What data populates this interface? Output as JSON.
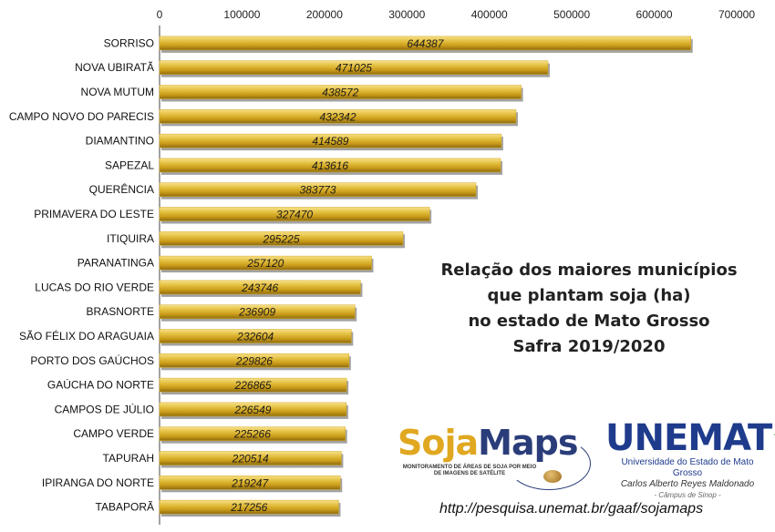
{
  "chart_data": {
    "type": "bar",
    "orientation": "horizontal",
    "title_lines": [
      "Relação dos maiores municípios",
      "que plantam soja (ha)",
      "no estado de Mato Grosso",
      "Safra 2019/2020"
    ],
    "categories": [
      "SORRISO",
      "NOVA UBIRATÃ",
      "NOVA MUTUM",
      "CAMPO NOVO DO PARECIS",
      "DIAMANTINO",
      "SAPEZAL",
      "QUERÊNCIA",
      "PRIMAVERA DO LESTE",
      "ITIQUIRA",
      "PARANATINGA",
      "LUCAS DO RIO VERDE",
      "BRASNORTE",
      "SÃO FÉLIX DO ARAGUAIA",
      "PORTO DOS GAÚCHOS",
      "GAÚCHA DO NORTE",
      "CAMPOS DE JÚLIO",
      "CAMPO VERDE",
      "TAPURAH",
      "IPIRANGA DO NORTE",
      "TABAPORÃ"
    ],
    "values": [
      644387,
      471025,
      438572,
      432342,
      414589,
      413616,
      383773,
      327470,
      295225,
      257120,
      243746,
      236909,
      232604,
      229826,
      226865,
      226549,
      225266,
      220514,
      219247,
      217256
    ],
    "xlim": [
      0,
      700000
    ],
    "x_ticks": [
      0,
      100000,
      200000,
      300000,
      400000,
      500000,
      600000,
      700000
    ],
    "x_axis_position": "top",
    "bar_color": "#d4a820",
    "grid": false,
    "legend": "none"
  },
  "logos": {
    "sojamaps": {
      "name_part1": "Soja",
      "name_part2": "Maps",
      "tagline": "MONITORAMENTO DE ÁREAS DE SOJA POR MEIO DE IMAGENS DE SATÉLITE"
    },
    "unemat": {
      "name": "UNEMAT",
      "line1": "Universidade do Estado de Mato Grosso",
      "line2": "Carlos Alberto Reyes Maldonado",
      "line3": "- Câmpus de Sinop -"
    }
  },
  "source_url": "http://pesquisa.unemat.br/gaaf/sojamaps",
  "colors": {
    "bar": "#d4a820",
    "bar_light": "#f3dc7a",
    "bar_dark": "#9a7410",
    "soja_yellow": "#e0a820",
    "soja_blue": "#2a3d7a",
    "unemat_blue": "#1f3b8c",
    "unemat_green": "#3a9a3a"
  }
}
